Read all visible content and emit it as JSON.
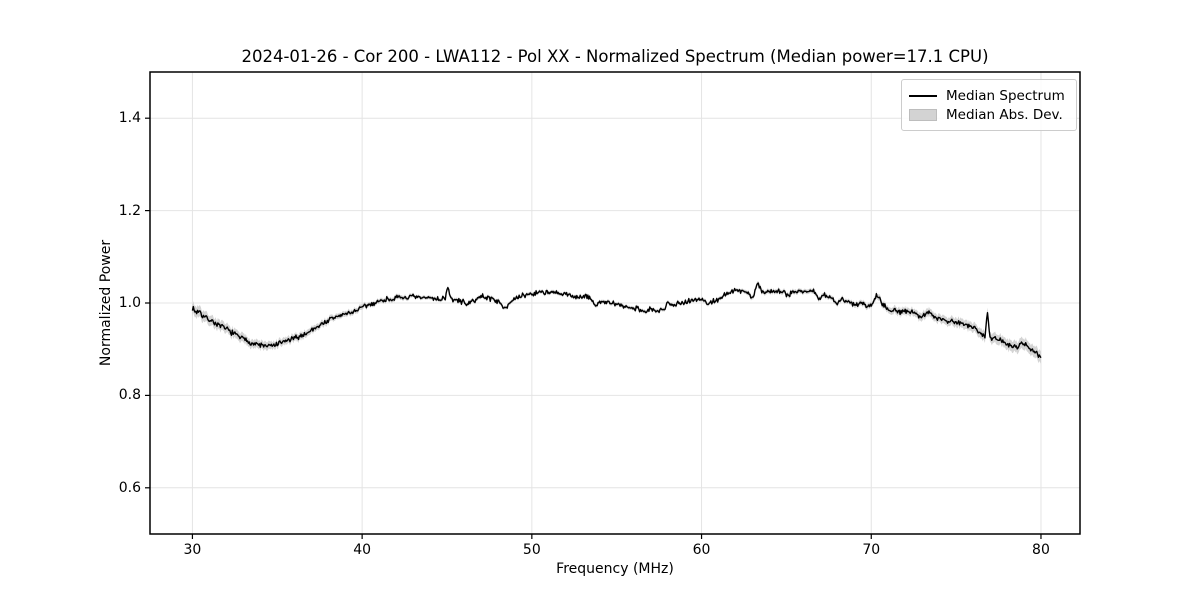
{
  "chart_data": {
    "type": "line",
    "title": "2024-01-26 - Cor 200 - LWA112 - Pol XX - Normalized Spectrum (Median power=17.1 CPU)",
    "xlabel": "Frequency (MHz)",
    "ylabel": "Normalized Power",
    "xlim": [
      27.5,
      82.3
    ],
    "ylim": [
      0.5,
      1.5
    ],
    "xticks": [
      30,
      40,
      50,
      60,
      70,
      80
    ],
    "xtick_labels": [
      "30",
      "40",
      "50",
      "60",
      "70",
      "80"
    ],
    "yticks": [
      0.6,
      0.8,
      1.0,
      1.2,
      1.4
    ],
    "ytick_labels": [
      "0.6",
      "0.8",
      "1.0",
      "1.2",
      "1.4"
    ],
    "grid": true,
    "grid_color": "#e4e4e4",
    "spine_color": "#000000",
    "line_color": "#000000",
    "band_color": "#c9c9c9",
    "noise_amplitude": 0.0035,
    "resample_step_mhz": 0.05,
    "legend": {
      "position": "upper right",
      "entries": [
        {
          "label": "Median Spectrum",
          "type": "line",
          "color": "#000000"
        },
        {
          "label": "Median Abs. Dev.",
          "type": "patch",
          "color": "#d3d3d3"
        }
      ]
    },
    "series": {
      "name": "Median Spectrum",
      "x": [
        30.0,
        30.2,
        30.4,
        30.6,
        30.8,
        31.0,
        31.3,
        31.6,
        32.0,
        32.3,
        32.6,
        33.0,
        33.3,
        33.6,
        34.0,
        34.4,
        34.8,
        35.2,
        35.6,
        36.0,
        36.4,
        36.8,
        37.2,
        37.6,
        38.0,
        38.4,
        38.8,
        39.2,
        39.6,
        40.0,
        40.4,
        40.8,
        41.2,
        41.6,
        42.0,
        42.5,
        43.0,
        43.5,
        44.0,
        44.5,
        44.9,
        45.05,
        45.2,
        45.6,
        46.0,
        46.3,
        46.7,
        47.1,
        47.5,
        47.9,
        48.2,
        48.45,
        48.7,
        49.0,
        49.4,
        49.8,
        50.2,
        50.6,
        51.0,
        51.4,
        51.8,
        52.2,
        52.6,
        53.0,
        53.4,
        53.75,
        54.0,
        54.4,
        54.8,
        55.2,
        55.6,
        56.0,
        56.4,
        56.7,
        57.0,
        57.4,
        57.8,
        58.05,
        58.3,
        58.7,
        59.1,
        59.5,
        60.0,
        60.4,
        60.8,
        61.2,
        61.6,
        62.0,
        62.4,
        62.8,
        63.05,
        63.3,
        63.6,
        64.0,
        64.4,
        64.8,
        65.1,
        65.4,
        65.8,
        66.2,
        66.6,
        66.95,
        67.2,
        67.6,
        67.95,
        68.3,
        68.7,
        69.0,
        69.4,
        69.8,
        70.1,
        70.3,
        70.5,
        70.7,
        71.0,
        71.4,
        71.8,
        72.2,
        72.6,
        73.0,
        73.4,
        73.8,
        74.2,
        74.6,
        75.0,
        75.4,
        75.8,
        76.2,
        76.5,
        76.7,
        76.85,
        77.0,
        77.4,
        77.8,
        78.2,
        78.6,
        78.9,
        79.2,
        79.5,
        79.8,
        80.0
      ],
      "y": [
        0.99,
        0.98,
        0.984,
        0.972,
        0.968,
        0.964,
        0.958,
        0.95,
        0.944,
        0.937,
        0.93,
        0.922,
        0.917,
        0.912,
        0.909,
        0.906,
        0.908,
        0.913,
        0.919,
        0.923,
        0.929,
        0.936,
        0.946,
        0.954,
        0.962,
        0.969,
        0.974,
        0.978,
        0.983,
        0.99,
        0.996,
        1.001,
        1.006,
        1.009,
        1.01,
        1.012,
        1.013,
        1.01,
        1.012,
        1.008,
        1.011,
        1.038,
        1.009,
        1.005,
        1.002,
        0.997,
        1.009,
        1.014,
        1.011,
        1.006,
        0.996,
        0.991,
        1.001,
        1.007,
        1.015,
        1.019,
        1.021,
        1.025,
        1.022,
        1.021,
        1.019,
        1.017,
        1.014,
        1.012,
        1.014,
        0.992,
        1.004,
        1.001,
        0.998,
        0.995,
        0.991,
        0.99,
        0.987,
        0.979,
        0.988,
        0.98,
        0.986,
        1.005,
        0.996,
        0.999,
        1.004,
        1.007,
        1.008,
        0.999,
        1.005,
        1.013,
        1.022,
        1.026,
        1.028,
        1.019,
        1.012,
        1.045,
        1.022,
        1.025,
        1.028,
        1.024,
        1.017,
        1.024,
        1.027,
        1.024,
        1.026,
        1.007,
        1.017,
        1.014,
        0.999,
        1.007,
        1.001,
        0.997,
        1.001,
        0.992,
        1.0,
        1.02,
        1.01,
        0.996,
        0.987,
        0.985,
        0.979,
        0.982,
        0.976,
        0.972,
        0.979,
        0.97,
        0.965,
        0.961,
        0.958,
        0.956,
        0.951,
        0.944,
        0.934,
        0.928,
        0.982,
        0.926,
        0.921,
        0.916,
        0.908,
        0.904,
        0.912,
        0.907,
        0.898,
        0.89,
        0.881
      ],
      "mad": [
        0.012,
        0.012,
        0.012,
        0.012,
        0.011,
        0.011,
        0.011,
        0.011,
        0.01,
        0.01,
        0.01,
        0.01,
        0.009,
        0.009,
        0.009,
        0.009,
        0.008,
        0.008,
        0.008,
        0.008,
        0.008,
        0.007,
        0.007,
        0.007,
        0.007,
        0.006,
        0.006,
        0.006,
        0.006,
        0.006,
        0.005,
        0.005,
        0.005,
        0.005,
        0.005,
        0.005,
        0.004,
        0.004,
        0.004,
        0.004,
        0.004,
        0.004,
        0.004,
        0.004,
        0.004,
        0.004,
        0.004,
        0.004,
        0.004,
        0.004,
        0.004,
        0.004,
        0.004,
        0.004,
        0.004,
        0.004,
        0.004,
        0.004,
        0.004,
        0.004,
        0.004,
        0.004,
        0.004,
        0.004,
        0.004,
        0.004,
        0.004,
        0.004,
        0.004,
        0.004,
        0.004,
        0.004,
        0.004,
        0.004,
        0.004,
        0.004,
        0.004,
        0.004,
        0.004,
        0.004,
        0.004,
        0.004,
        0.004,
        0.004,
        0.004,
        0.004,
        0.004,
        0.004,
        0.004,
        0.005,
        0.005,
        0.005,
        0.005,
        0.005,
        0.005,
        0.005,
        0.005,
        0.005,
        0.005,
        0.005,
        0.005,
        0.005,
        0.005,
        0.005,
        0.005,
        0.005,
        0.005,
        0.006,
        0.006,
        0.006,
        0.006,
        0.006,
        0.007,
        0.007,
        0.007,
        0.008,
        0.008,
        0.008,
        0.008,
        0.009,
        0.009,
        0.009,
        0.009,
        0.009,
        0.01,
        0.01,
        0.01,
        0.01,
        0.011,
        0.011,
        0.011,
        0.011,
        0.011,
        0.011,
        0.012,
        0.012,
        0.012,
        0.012,
        0.012,
        0.013,
        0.013
      ]
    }
  }
}
